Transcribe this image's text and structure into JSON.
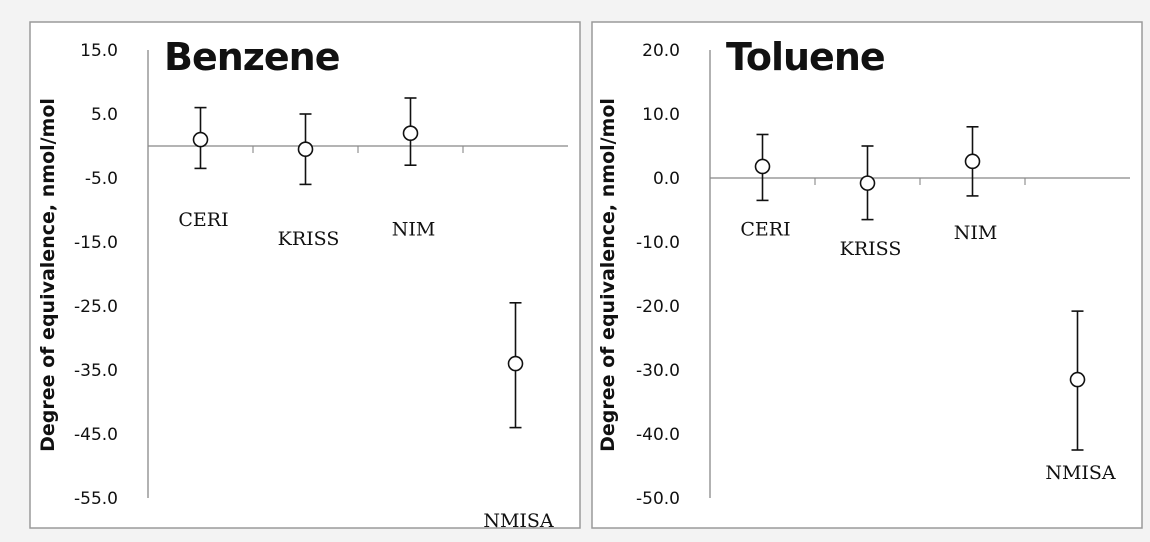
{
  "chart_data": [
    {
      "type": "scatter",
      "title": "Benzene",
      "ylabel": "Degree of equivalence, nmol/mol",
      "ylim": [
        -55,
        15
      ],
      "yticks": [
        "15.0",
        "5.0",
        "-5.0",
        "-15.0",
        "-25.0",
        "-35.0",
        "-45.0",
        "-55.0"
      ],
      "ytick_values": [
        15,
        5,
        -5,
        -15,
        -25,
        -35,
        -45,
        -55
      ],
      "categories": [
        "CERI",
        "KRISS",
        "NIM",
        "NMISA"
      ],
      "values": [
        1.0,
        -0.5,
        2.0,
        -34.0
      ],
      "error_upper": [
        6.0,
        5.0,
        7.5,
        -24.5
      ],
      "error_lower": [
        -3.5,
        -6.0,
        -3.0,
        -44.0
      ],
      "label_y": [
        -12.5,
        -15.5,
        -14.0,
        -59.5
      ],
      "grid": false,
      "legend": "none"
    },
    {
      "type": "scatter",
      "title": "Toluene",
      "ylabel": "Degree of equivalence, nmol/mol",
      "ylim": [
        -50,
        20
      ],
      "yticks": [
        "20.0",
        "10.0",
        "0.0",
        "-10.0",
        "-20.0",
        "-30.0",
        "-40.0",
        "-50.0"
      ],
      "ytick_values": [
        20,
        10,
        0,
        -10,
        -20,
        -30,
        -40,
        -50
      ],
      "categories": [
        "CERI",
        "KRISS",
        "NIM",
        "NMISA"
      ],
      "values": [
        1.8,
        -0.8,
        2.6,
        -31.5
      ],
      "error_upper": [
        6.8,
        5.0,
        8.0,
        -20.8
      ],
      "error_lower": [
        -3.5,
        -6.5,
        -2.8,
        -42.5
      ],
      "label_y": [
        -9.0,
        -12.0,
        -9.5,
        -47.0
      ],
      "grid": false,
      "legend": "none"
    }
  ]
}
